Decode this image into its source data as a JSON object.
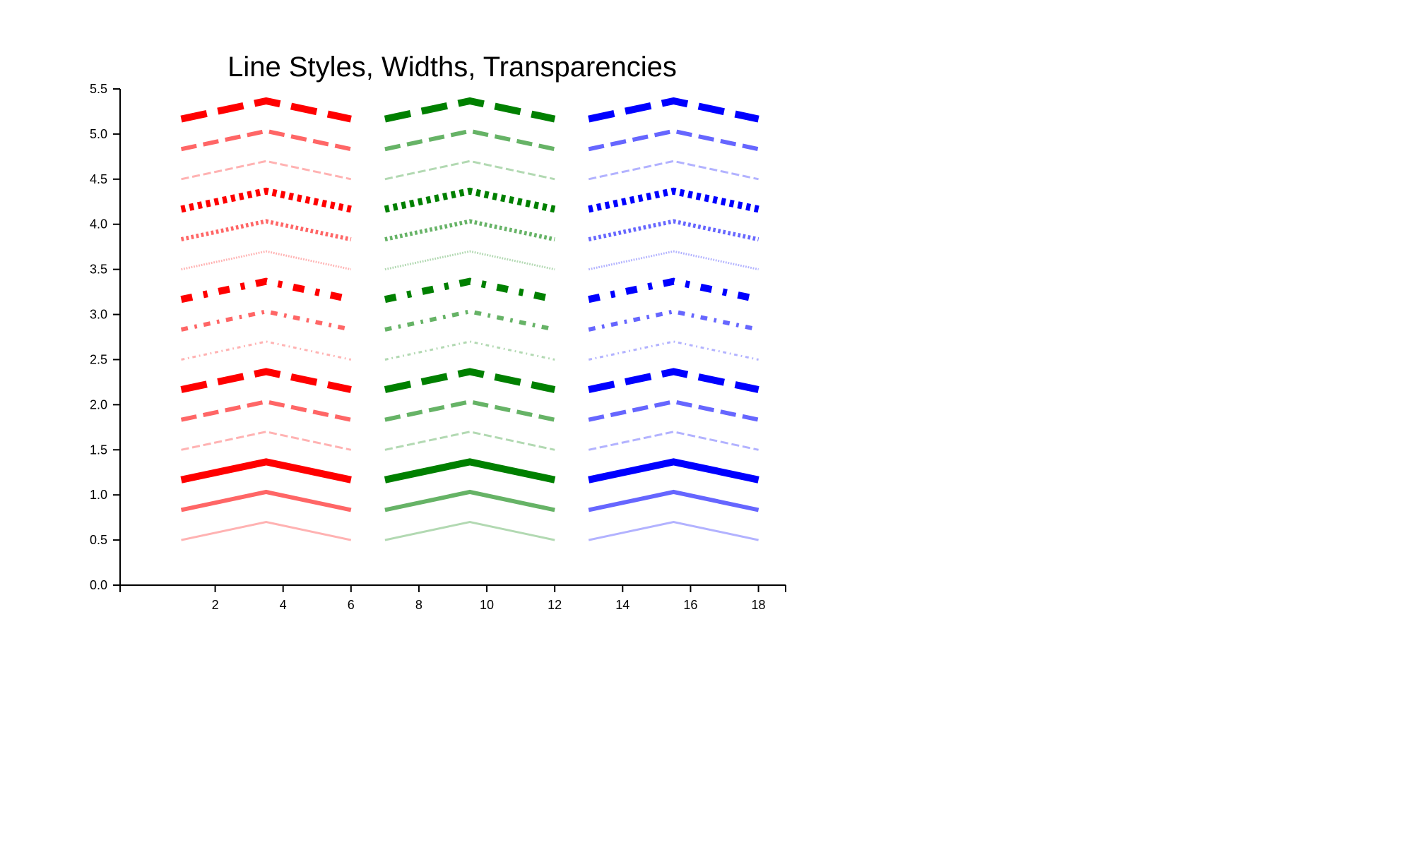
{
  "chart_data": {
    "type": "line",
    "title": "Line Styles, Widths, Transparencies",
    "xlabel": "",
    "ylabel": "",
    "xlim": [
      -0.8,
      18.8
    ],
    "ylim": [
      0,
      5.5
    ],
    "x_ticks": [
      2,
      4,
      6,
      8,
      10,
      12,
      14,
      16,
      18
    ],
    "y_ticks": [
      0.0,
      0.5,
      1.0,
      1.5,
      2.0,
      2.5,
      3.0,
      3.5,
      4.0,
      4.5,
      5.0,
      5.5
    ],
    "grid": false,
    "legend": "none",
    "colors": {
      "red": "#ff0000",
      "green": "#008000",
      "blue": "#0000ff"
    },
    "series": [
      {
        "color": "red",
        "style": "solid",
        "alpha": 0.3,
        "width": 1,
        "x": [
          1,
          3.5,
          6
        ],
        "y": [
          0.5,
          0.7,
          0.5
        ]
      },
      {
        "color": "red",
        "style": "solid",
        "alpha": 0.6,
        "width": 2,
        "x": [
          1,
          3.5,
          6
        ],
        "y": [
          0.833,
          1.033,
          0.833
        ]
      },
      {
        "color": "red",
        "style": "solid",
        "alpha": 1.0,
        "width": 3,
        "x": [
          1,
          3.5,
          6
        ],
        "y": [
          1.167,
          1.367,
          1.167
        ]
      },
      {
        "color": "red",
        "style": "dashed",
        "alpha": 0.3,
        "width": 1,
        "x": [
          1,
          3.5,
          6
        ],
        "y": [
          1.5,
          1.7,
          1.5
        ]
      },
      {
        "color": "red",
        "style": "dashed",
        "alpha": 0.6,
        "width": 2,
        "x": [
          1,
          3.5,
          6
        ],
        "y": [
          1.833,
          2.033,
          1.833
        ]
      },
      {
        "color": "red",
        "style": "dashed",
        "alpha": 1.0,
        "width": 3,
        "x": [
          1,
          3.5,
          6
        ],
        "y": [
          2.167,
          2.367,
          2.167
        ]
      },
      {
        "color": "red",
        "style": "dashdot",
        "alpha": 0.3,
        "width": 1,
        "x": [
          1,
          3.5,
          6
        ],
        "y": [
          2.5,
          2.7,
          2.5
        ]
      },
      {
        "color": "red",
        "style": "dashdot",
        "alpha": 0.6,
        "width": 2,
        "x": [
          1,
          3.5,
          6
        ],
        "y": [
          2.833,
          3.033,
          2.833
        ]
      },
      {
        "color": "red",
        "style": "dashdot",
        "alpha": 1.0,
        "width": 3,
        "x": [
          1,
          3.5,
          6
        ],
        "y": [
          3.167,
          3.367,
          3.167
        ]
      },
      {
        "color": "red",
        "style": "dotted",
        "alpha": 0.3,
        "width": 1,
        "x": [
          1,
          3.5,
          6
        ],
        "y": [
          3.5,
          3.7,
          3.5
        ]
      },
      {
        "color": "red",
        "style": "dotted",
        "alpha": 0.6,
        "width": 2,
        "x": [
          1,
          3.5,
          6
        ],
        "y": [
          3.833,
          4.033,
          3.833
        ]
      },
      {
        "color": "red",
        "style": "dotted",
        "alpha": 1.0,
        "width": 3,
        "x": [
          1,
          3.5,
          6
        ],
        "y": [
          4.167,
          4.367,
          4.167
        ]
      },
      {
        "color": "red",
        "style": "dashed",
        "alpha": 0.3,
        "width": 1,
        "x": [
          1,
          3.5,
          6
        ],
        "y": [
          4.5,
          4.7,
          4.5
        ]
      },
      {
        "color": "red",
        "style": "dashed",
        "alpha": 0.6,
        "width": 2,
        "x": [
          1,
          3.5,
          6
        ],
        "y": [
          4.833,
          5.033,
          4.833
        ]
      },
      {
        "color": "red",
        "style": "dashed",
        "alpha": 1.0,
        "width": 3,
        "x": [
          1,
          3.5,
          6
        ],
        "y": [
          5.167,
          5.367,
          5.167
        ]
      },
      {
        "color": "green",
        "style": "solid",
        "alpha": 0.3,
        "width": 1,
        "x": [
          7,
          9.5,
          12
        ],
        "y": [
          0.5,
          0.7,
          0.5
        ]
      },
      {
        "color": "green",
        "style": "solid",
        "alpha": 0.6,
        "width": 2,
        "x": [
          7,
          9.5,
          12
        ],
        "y": [
          0.833,
          1.033,
          0.833
        ]
      },
      {
        "color": "green",
        "style": "solid",
        "alpha": 1.0,
        "width": 3,
        "x": [
          7,
          9.5,
          12
        ],
        "y": [
          1.167,
          1.367,
          1.167
        ]
      },
      {
        "color": "green",
        "style": "dashed",
        "alpha": 0.3,
        "width": 1,
        "x": [
          7,
          9.5,
          12
        ],
        "y": [
          1.5,
          1.7,
          1.5
        ]
      },
      {
        "color": "green",
        "style": "dashed",
        "alpha": 0.6,
        "width": 2,
        "x": [
          7,
          9.5,
          12
        ],
        "y": [
          1.833,
          2.033,
          1.833
        ]
      },
      {
        "color": "green",
        "style": "dashed",
        "alpha": 1.0,
        "width": 3,
        "x": [
          7,
          9.5,
          12
        ],
        "y": [
          2.167,
          2.367,
          2.167
        ]
      },
      {
        "color": "green",
        "style": "dashdot",
        "alpha": 0.3,
        "width": 1,
        "x": [
          7,
          9.5,
          12
        ],
        "y": [
          2.5,
          2.7,
          2.5
        ]
      },
      {
        "color": "green",
        "style": "dashdot",
        "alpha": 0.6,
        "width": 2,
        "x": [
          7,
          9.5,
          12
        ],
        "y": [
          2.833,
          3.033,
          2.833
        ]
      },
      {
        "color": "green",
        "style": "dashdot",
        "alpha": 1.0,
        "width": 3,
        "x": [
          7,
          9.5,
          12
        ],
        "y": [
          3.167,
          3.367,
          3.167
        ]
      },
      {
        "color": "green",
        "style": "dotted",
        "alpha": 0.3,
        "width": 1,
        "x": [
          7,
          9.5,
          12
        ],
        "y": [
          3.5,
          3.7,
          3.5
        ]
      },
      {
        "color": "green",
        "style": "dotted",
        "alpha": 0.6,
        "width": 2,
        "x": [
          7,
          9.5,
          12
        ],
        "y": [
          3.833,
          4.033,
          3.833
        ]
      },
      {
        "color": "green",
        "style": "dotted",
        "alpha": 1.0,
        "width": 3,
        "x": [
          7,
          9.5,
          12
        ],
        "y": [
          4.167,
          4.367,
          4.167
        ]
      },
      {
        "color": "green",
        "style": "dashed",
        "alpha": 0.3,
        "width": 1,
        "x": [
          7,
          9.5,
          12
        ],
        "y": [
          4.5,
          4.7,
          4.5
        ]
      },
      {
        "color": "green",
        "style": "dashed",
        "alpha": 0.6,
        "width": 2,
        "x": [
          7,
          9.5,
          12
        ],
        "y": [
          4.833,
          5.033,
          4.833
        ]
      },
      {
        "color": "green",
        "style": "dashed",
        "alpha": 1.0,
        "width": 3,
        "x": [
          7,
          9.5,
          12
        ],
        "y": [
          5.167,
          5.367,
          5.167
        ]
      },
      {
        "color": "blue",
        "style": "solid",
        "alpha": 0.3,
        "width": 1,
        "x": [
          13,
          15.5,
          18
        ],
        "y": [
          0.5,
          0.7,
          0.5
        ]
      },
      {
        "color": "blue",
        "style": "solid",
        "alpha": 0.6,
        "width": 2,
        "x": [
          13,
          15.5,
          18
        ],
        "y": [
          0.833,
          1.033,
          0.833
        ]
      },
      {
        "color": "blue",
        "style": "solid",
        "alpha": 1.0,
        "width": 3,
        "x": [
          13,
          15.5,
          18
        ],
        "y": [
          1.167,
          1.367,
          1.167
        ]
      },
      {
        "color": "blue",
        "style": "dashed",
        "alpha": 0.3,
        "width": 1,
        "x": [
          13,
          15.5,
          18
        ],
        "y": [
          1.5,
          1.7,
          1.5
        ]
      },
      {
        "color": "blue",
        "style": "dashed",
        "alpha": 0.6,
        "width": 2,
        "x": [
          13,
          15.5,
          18
        ],
        "y": [
          1.833,
          2.033,
          1.833
        ]
      },
      {
        "color": "blue",
        "style": "dashed",
        "alpha": 1.0,
        "width": 3,
        "x": [
          13,
          15.5,
          18
        ],
        "y": [
          2.167,
          2.367,
          2.167
        ]
      },
      {
        "color": "blue",
        "style": "dashdot",
        "alpha": 0.3,
        "width": 1,
        "x": [
          13,
          15.5,
          18
        ],
        "y": [
          2.5,
          2.7,
          2.5
        ]
      },
      {
        "color": "blue",
        "style": "dashdot",
        "alpha": 0.6,
        "width": 2,
        "x": [
          13,
          15.5,
          18
        ],
        "y": [
          2.833,
          3.033,
          2.833
        ]
      },
      {
        "color": "blue",
        "style": "dashdot",
        "alpha": 1.0,
        "width": 3,
        "x": [
          13,
          15.5,
          18
        ],
        "y": [
          3.167,
          3.367,
          3.167
        ]
      },
      {
        "color": "blue",
        "style": "dotted",
        "alpha": 0.3,
        "width": 1,
        "x": [
          13,
          15.5,
          18
        ],
        "y": [
          3.5,
          3.7,
          3.5
        ]
      },
      {
        "color": "blue",
        "style": "dotted",
        "alpha": 0.6,
        "width": 2,
        "x": [
          13,
          15.5,
          18
        ],
        "y": [
          3.833,
          4.033,
          3.833
        ]
      },
      {
        "color": "blue",
        "style": "dotted",
        "alpha": 1.0,
        "width": 3,
        "x": [
          13,
          15.5,
          18
        ],
        "y": [
          4.167,
          4.367,
          4.167
        ]
      },
      {
        "color": "blue",
        "style": "dashed",
        "alpha": 0.3,
        "width": 1,
        "x": [
          13,
          15.5,
          18
        ],
        "y": [
          4.5,
          4.7,
          4.5
        ]
      },
      {
        "color": "blue",
        "style": "dashed",
        "alpha": 0.6,
        "width": 2,
        "x": [
          13,
          15.5,
          18
        ],
        "y": [
          4.833,
          5.033,
          4.833
        ]
      },
      {
        "color": "blue",
        "style": "dashed",
        "alpha": 1.0,
        "width": 3,
        "x": [
          13,
          15.5,
          18
        ],
        "y": [
          5.167,
          5.367,
          5.167
        ]
      }
    ]
  }
}
